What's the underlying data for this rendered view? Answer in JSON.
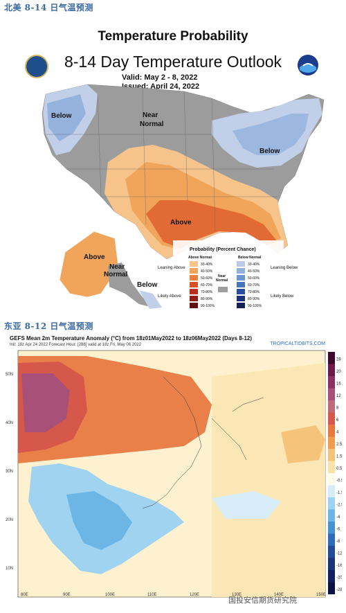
{
  "section1": {
    "title": "北美 8-14 日气温预测"
  },
  "cpc": {
    "title": "Temperature Probability",
    "subtitle": "8-14 Day Temperature Outlook",
    "valid": "Valid:  May 2 - 8, 2022",
    "issued": "Issued:  April 24, 2022",
    "regions": {
      "below_west": "Below",
      "near_normal_1": "Near",
      "near_normal_2": "Normal",
      "below_east": "Below",
      "above_south": "Above",
      "above_alaska": "Above",
      "near_alaska_1": "Near",
      "near_alaska_2": "Normal",
      "below_alaska": "Below"
    },
    "legend": {
      "title": "Probability (Percent Chance)",
      "above_head": "Above Normal",
      "below_head": "Below Normal",
      "near_label_1": "Near",
      "near_label_2": "Normal",
      "leaning_above": "Leaning Above",
      "likely_above": "Likely Above",
      "leaning_below": "Leaning Below",
      "likely_below": "Likely Below",
      "bins": [
        "33-40%",
        "40-50%",
        "50-60%",
        "60-70%",
        "70-80%",
        "80-90%",
        "90-100%"
      ],
      "above_colors": [
        "#f6c48a",
        "#f0a55a",
        "#e9803e",
        "#d6532a",
        "#b83020",
        "#8f1e18",
        "#5e1010"
      ],
      "below_colors": [
        "#b9c9e6",
        "#8fb1dc",
        "#6c95cf",
        "#4673bb",
        "#2b4fa0",
        "#1e3278",
        "#14205a"
      ],
      "near_color": "#9e9e9e"
    }
  },
  "section2": {
    "title": "东亚 8-12 日气温预测"
  },
  "gefs": {
    "title": "GEFS Mean 2m Temperature Anomaly (°C) from 18z01May2022 to 18z06May2022 (Days 8-12)",
    "init": "Init: 18z Apr 24 2022    Forecast Hour: [288]    valid at 18z Fri, May 06 2022",
    "site": "TROPICALTIDBITS.COM",
    "lat_labels": [
      "50N",
      "40N",
      "30N",
      "20N",
      "10N"
    ],
    "lon_labels": [
      "80E",
      "90E",
      "100E",
      "110E",
      "120E",
      "130E",
      "140E",
      "150E"
    ],
    "colorbar": [
      "28",
      "20",
      "16",
      "12",
      "8",
      "6",
      "4",
      "2.5",
      "1.5",
      "0.5",
      "-0.5",
      "-1.5",
      "-2.5",
      "-4",
      "-6",
      "-8",
      "-12",
      "-16",
      "-20",
      "-28"
    ],
    "colorbar_colors": [
      "#3d0a2e",
      "#6b1a4a",
      "#8c2f63",
      "#a85078",
      "#c06a7a",
      "#d5584a",
      "#e8783f",
      "#f29b4f",
      "#f6c37a",
      "#fbe3a8",
      "#fffbe8",
      "#d6ecf7",
      "#9fd3ef",
      "#6cb6e6",
      "#4791d0",
      "#2f6bb7",
      "#254b96",
      "#1b3378",
      "#152060",
      "#0e1440"
    ]
  },
  "footer": {
    "watermark": "国投安信期货研究院"
  }
}
